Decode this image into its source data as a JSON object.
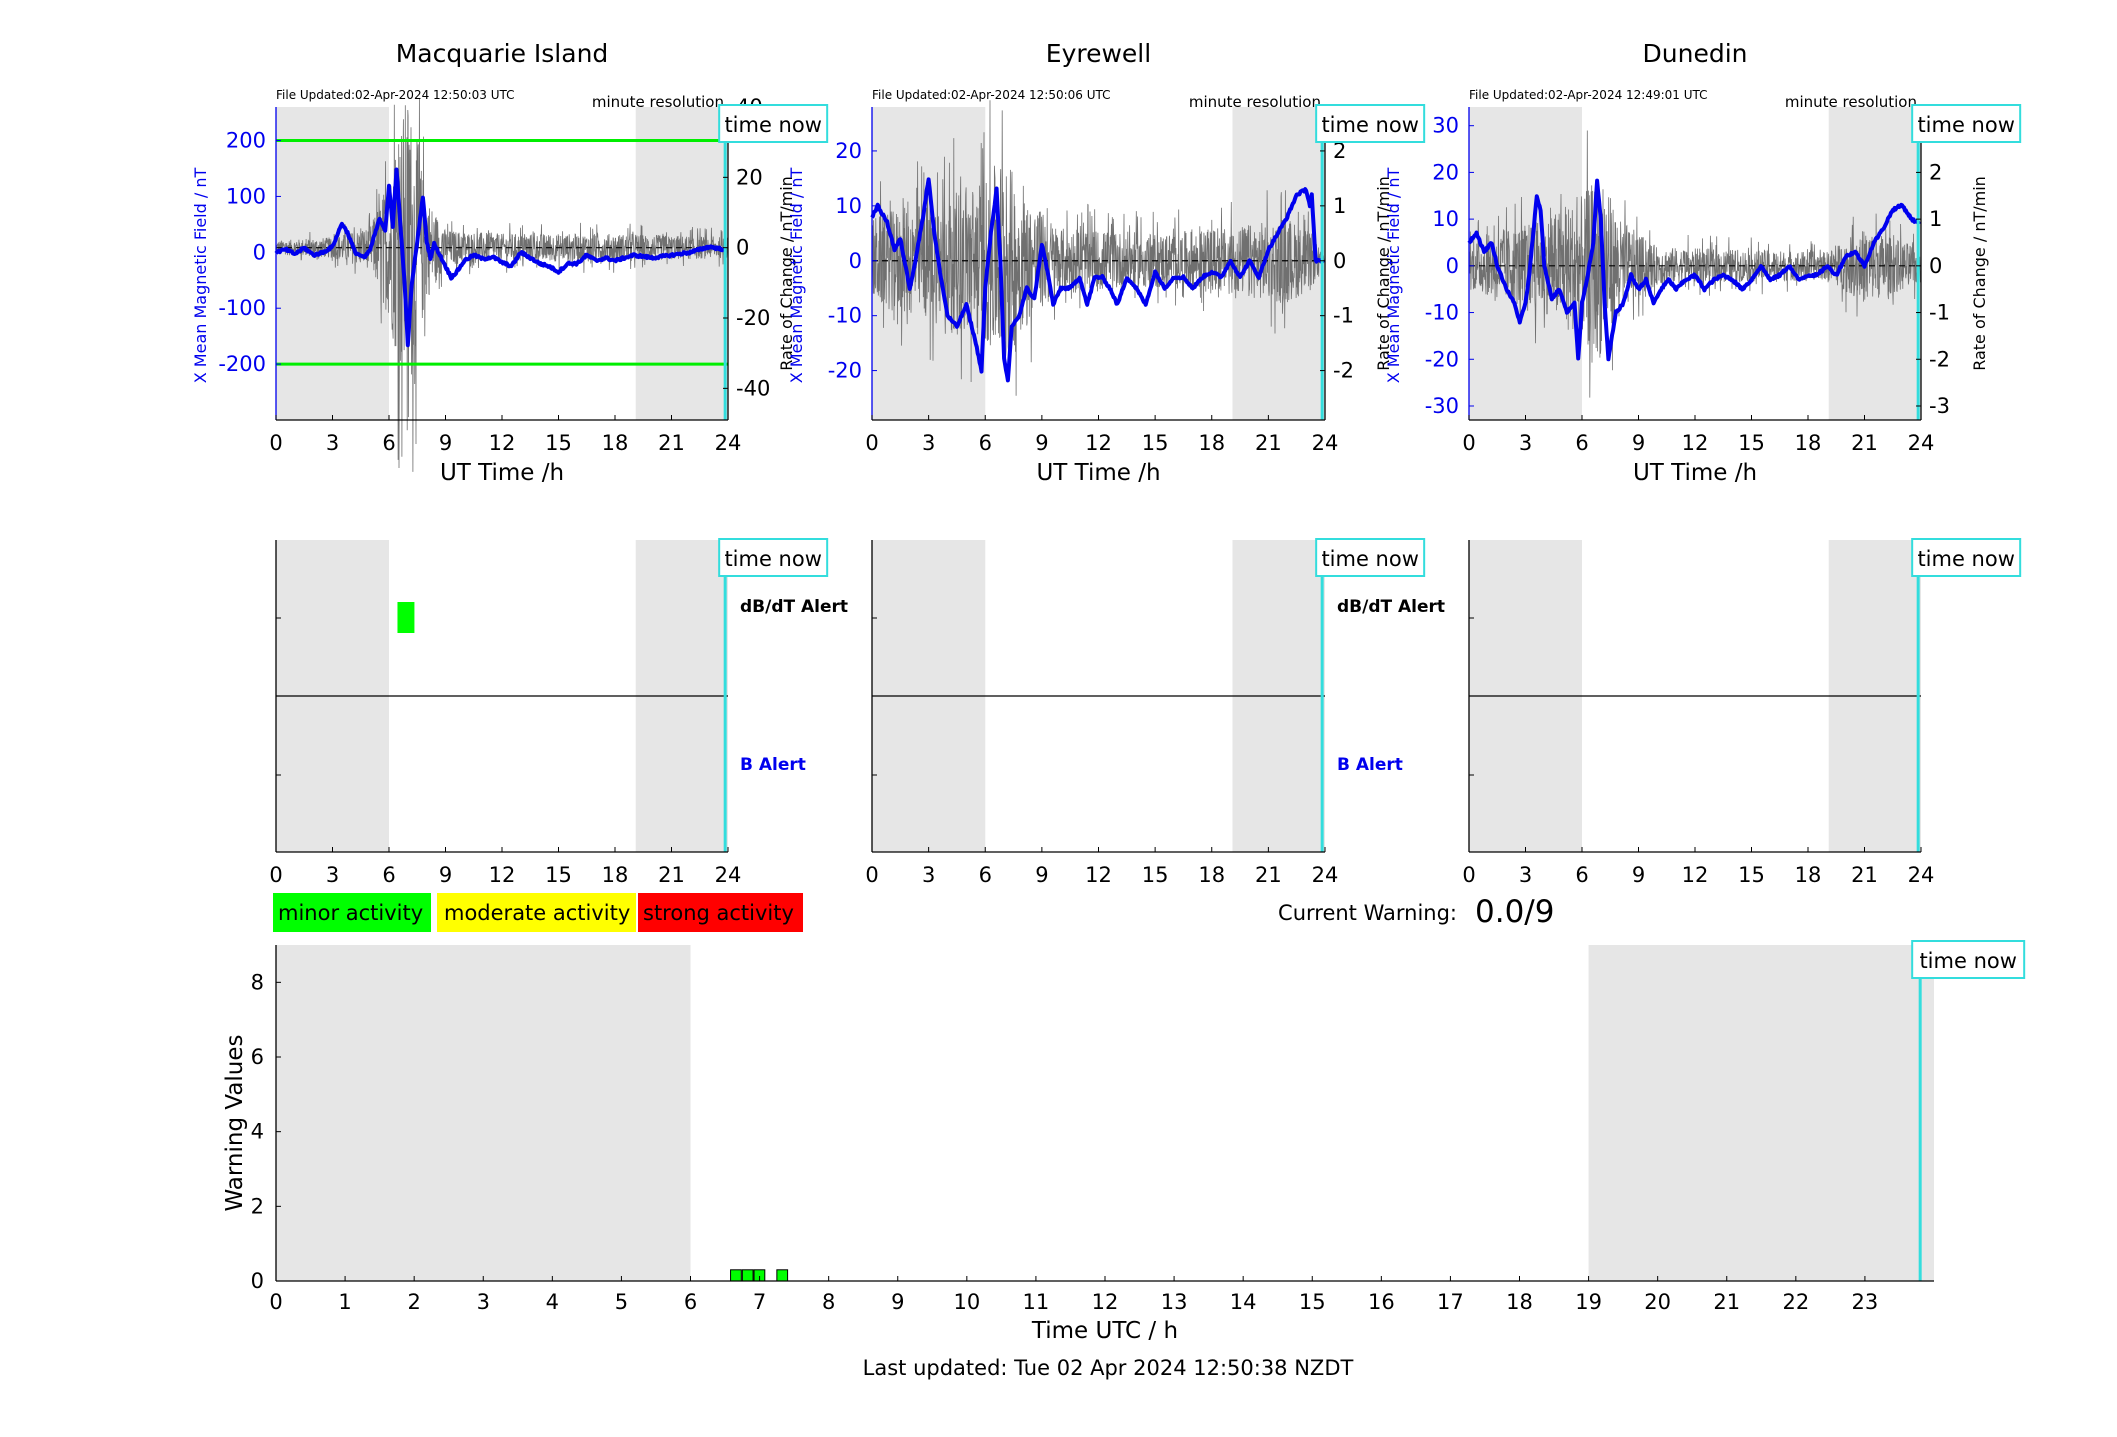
{
  "footer": {
    "last_updated": "Last updated: Tue 02 Apr 2024 12:50:38 NZDT"
  },
  "labels": {
    "time_now": "time now",
    "minute_resolution": "minute resolution",
    "x_axis_top": "UT Time /h",
    "y_left": "X Mean Magnetic Field / nT",
    "y_right": "Rate of Change / nT/min",
    "dbdt_alert": "dB/dT Alert",
    "b_alert": "B Alert",
    "current_warning_label": "Current Warning:",
    "current_warning_value": "0.0/9"
  },
  "legend": [
    {
      "label": "minor activity",
      "color": "#00ff00"
    },
    {
      "label": "moderate activity",
      "color": "#ffff00"
    },
    {
      "label": "strong activity",
      "color": "#ff0000"
    }
  ],
  "colors": {
    "field_line": "#0000ee",
    "rate_line": "#707070",
    "threshold": "#00ee00",
    "time_now": "#33dddd",
    "night_shade": "#e6e6e6"
  },
  "chart_data": [
    {
      "type": "line",
      "title": "Macquarie Island",
      "file_updated": "File Updated:02-Apr-2024 12:50:03 UTC",
      "xlabel": "UT Time /h",
      "ylabel_left": "X Mean Magnetic Field / nT",
      "ylabel_right": "Rate of Change / nT/min",
      "xlim": [
        0,
        24
      ],
      "xticks": [
        0,
        3,
        6,
        9,
        12,
        15,
        18,
        21,
        24
      ],
      "ylim_left": [
        -300,
        260
      ],
      "yticks_left": [
        200,
        100,
        0,
        -100,
        -200
      ],
      "ylim_right": [
        -49,
        40
      ],
      "yticks_right": [
        40,
        20,
        0,
        -20,
        -40
      ],
      "night_bands": [
        [
          0,
          6
        ],
        [
          19.1,
          24
        ]
      ],
      "thresholds": [
        200,
        -200
      ],
      "time_now": 23.85,
      "field_keypoints": [
        [
          0,
          0
        ],
        [
          0.5,
          5
        ],
        [
          1,
          -3
        ],
        [
          1.5,
          8
        ],
        [
          2,
          -5
        ],
        [
          2.5,
          0
        ],
        [
          3,
          10
        ],
        [
          3.5,
          52
        ],
        [
          3.8,
          35
        ],
        [
          4.2,
          0
        ],
        [
          4.7,
          -10
        ],
        [
          5,
          5
        ],
        [
          5.5,
          60
        ],
        [
          5.8,
          40
        ],
        [
          6,
          120
        ],
        [
          6.2,
          45
        ],
        [
          6.4,
          150
        ],
        [
          6.6,
          50
        ],
        [
          6.8,
          -40
        ],
        [
          7,
          -165
        ],
        [
          7.2,
          -60
        ],
        [
          7.5,
          20
        ],
        [
          7.8,
          100
        ],
        [
          8,
          20
        ],
        [
          8.2,
          -10
        ],
        [
          8.4,
          15
        ],
        [
          8.7,
          -5
        ],
        [
          9,
          -25
        ],
        [
          9.3,
          -45
        ],
        [
          9.6,
          -35
        ],
        [
          10,
          -15
        ],
        [
          10.5,
          -5
        ],
        [
          11,
          -12
        ],
        [
          11.5,
          -8
        ],
        [
          12,
          -18
        ],
        [
          12.5,
          -25
        ],
        [
          13,
          0
        ],
        [
          13.5,
          -10
        ],
        [
          14,
          -20
        ],
        [
          14.5,
          -25
        ],
        [
          15,
          -35
        ],
        [
          15.5,
          -20
        ],
        [
          16,
          -20
        ],
        [
          16.5,
          -5
        ],
        [
          17,
          -15
        ],
        [
          17.5,
          -10
        ],
        [
          18,
          -15
        ],
        [
          19,
          -5
        ],
        [
          20,
          -10
        ],
        [
          21,
          -5
        ],
        [
          22,
          0
        ],
        [
          23,
          10
        ],
        [
          23.8,
          5
        ]
      ],
      "rate_amplitude": [
        [
          0,
          2
        ],
        [
          3,
          3
        ],
        [
          5,
          6
        ],
        [
          6,
          20
        ],
        [
          6.5,
          35
        ],
        [
          7,
          45
        ],
        [
          7.5,
          30
        ],
        [
          8,
          15
        ],
        [
          9,
          5
        ],
        [
          12,
          4
        ],
        [
          18,
          4
        ],
        [
          24,
          3
        ]
      ]
    },
    {
      "type": "line",
      "title": "Eyrewell",
      "file_updated": "File Updated:02-Apr-2024 12:50:06 UTC",
      "xlabel": "UT Time /h",
      "ylabel_left": "X Mean Magnetic Field / nT",
      "ylabel_right": "Rate of Change / nT/min",
      "xlim": [
        0,
        24
      ],
      "xticks": [
        0,
        3,
        6,
        9,
        12,
        15,
        18,
        21,
        24
      ],
      "ylim_left": [
        -29,
        28
      ],
      "yticks_left": [
        20,
        10,
        0,
        -10,
        -20
      ],
      "ylim_right": [
        -2.9,
        2.8
      ],
      "yticks_right": [
        2,
        1,
        0,
        -1,
        -2
      ],
      "night_bands": [
        [
          0,
          6
        ],
        [
          19.1,
          24
        ]
      ],
      "thresholds": [],
      "time_now": 23.85,
      "field_keypoints": [
        [
          0,
          8
        ],
        [
          0.3,
          10
        ],
        [
          0.8,
          7
        ],
        [
          1.2,
          2
        ],
        [
          1.5,
          4
        ],
        [
          2,
          -5
        ],
        [
          2.3,
          0
        ],
        [
          2.7,
          8
        ],
        [
          3,
          15
        ],
        [
          3.3,
          5
        ],
        [
          3.6,
          -2
        ],
        [
          4,
          -10
        ],
        [
          4.5,
          -12
        ],
        [
          5,
          -8
        ],
        [
          5.5,
          -15
        ],
        [
          5.8,
          -20
        ],
        [
          6,
          -5
        ],
        [
          6.3,
          5
        ],
        [
          6.6,
          13
        ],
        [
          6.8,
          0
        ],
        [
          7,
          -18
        ],
        [
          7.2,
          -22
        ],
        [
          7.4,
          -12
        ],
        [
          7.8,
          -10
        ],
        [
          8.2,
          -5
        ],
        [
          8.6,
          -7
        ],
        [
          9,
          3
        ],
        [
          9.3,
          -2
        ],
        [
          9.6,
          -8
        ],
        [
          10,
          -5
        ],
        [
          10.5,
          -5
        ],
        [
          11,
          -3
        ],
        [
          11.4,
          -8
        ],
        [
          11.8,
          -3
        ],
        [
          12.2,
          -3
        ],
        [
          12.6,
          -5
        ],
        [
          13,
          -8
        ],
        [
          13.5,
          -3
        ],
        [
          14,
          -5
        ],
        [
          14.5,
          -8
        ],
        [
          15,
          -2
        ],
        [
          15.5,
          -5
        ],
        [
          16,
          -3
        ],
        [
          16.5,
          -3
        ],
        [
          17,
          -5
        ],
        [
          17.5,
          -3
        ],
        [
          18,
          -2
        ],
        [
          18.5,
          -3
        ],
        [
          19,
          0
        ],
        [
          19.5,
          -3
        ],
        [
          20,
          0
        ],
        [
          20.5,
          -3
        ],
        [
          21,
          2
        ],
        [
          21.5,
          5
        ],
        [
          22,
          8
        ],
        [
          22.5,
          12
        ],
        [
          23,
          13
        ],
        [
          23.2,
          10
        ],
        [
          23.3,
          12
        ],
        [
          23.5,
          0
        ],
        [
          23.9,
          0
        ]
      ],
      "rate_amplitude": [
        [
          0,
          0.8
        ],
        [
          2,
          1
        ],
        [
          4,
          1.2
        ],
        [
          6,
          1.5
        ],
        [
          7,
          2
        ],
        [
          8,
          1.2
        ],
        [
          10,
          0.6
        ],
        [
          15,
          0.5
        ],
        [
          19,
          0.6
        ],
        [
          22,
          0.8
        ],
        [
          23.3,
          0.5
        ],
        [
          24,
          0
        ]
      ]
    },
    {
      "type": "line",
      "title": "Dunedin",
      "file_updated": "File Updated:02-Apr-2024 12:49:01 UTC",
      "xlabel": "UT Time /h",
      "ylabel_left": "X Mean Magnetic Field / nT",
      "ylabel_right": "Rate of Change / nT/min",
      "xlim": [
        0,
        24
      ],
      "xticks": [
        0,
        3,
        6,
        9,
        12,
        15,
        18,
        21,
        24
      ],
      "ylim_left": [
        -33,
        34
      ],
      "yticks_left": [
        30,
        20,
        10,
        0,
        -10,
        -20,
        -30
      ],
      "ylim_right": [
        -3.3,
        3.4
      ],
      "yticks_right": [
        3,
        2,
        1,
        0,
        -1,
        -2,
        -3
      ],
      "night_bands": [
        [
          0,
          6
        ],
        [
          19.1,
          24
        ]
      ],
      "thresholds": [],
      "time_now": 23.85,
      "field_keypoints": [
        [
          0,
          5
        ],
        [
          0.4,
          7
        ],
        [
          0.8,
          3
        ],
        [
          1.2,
          5
        ],
        [
          1.5,
          0
        ],
        [
          2,
          -5
        ],
        [
          2.4,
          -8
        ],
        [
          2.7,
          -12
        ],
        [
          3,
          -8
        ],
        [
          3.2,
          -2
        ],
        [
          3.6,
          15
        ],
        [
          3.8,
          12
        ],
        [
          4,
          0
        ],
        [
          4.4,
          -7
        ],
        [
          4.8,
          -5
        ],
        [
          5.2,
          -10
        ],
        [
          5.6,
          -8
        ],
        [
          5.8,
          -20
        ],
        [
          6,
          -8
        ],
        [
          6.3,
          -2
        ],
        [
          6.6,
          5
        ],
        [
          6.8,
          18
        ],
        [
          7,
          10
        ],
        [
          7.2,
          -8
        ],
        [
          7.4,
          -20
        ],
        [
          7.6,
          -15
        ],
        [
          7.8,
          -10
        ],
        [
          8.2,
          -8
        ],
        [
          8.6,
          -2
        ],
        [
          9,
          -5
        ],
        [
          9.4,
          -3
        ],
        [
          9.8,
          -8
        ],
        [
          10.2,
          -5
        ],
        [
          10.6,
          -3
        ],
        [
          11,
          -5
        ],
        [
          11.5,
          -3
        ],
        [
          12,
          -2
        ],
        [
          12.5,
          -5
        ],
        [
          13,
          -3
        ],
        [
          13.5,
          -2
        ],
        [
          14,
          -3
        ],
        [
          14.5,
          -5
        ],
        [
          15,
          -3
        ],
        [
          15.5,
          0
        ],
        [
          16,
          -3
        ],
        [
          16.5,
          -2
        ],
        [
          17,
          0
        ],
        [
          17.5,
          -3
        ],
        [
          18,
          -2
        ],
        [
          18.5,
          -2
        ],
        [
          19,
          0
        ],
        [
          19.5,
          -2
        ],
        [
          20,
          2
        ],
        [
          20.5,
          3
        ],
        [
          21,
          0
        ],
        [
          21.5,
          5
        ],
        [
          22,
          8
        ],
        [
          22.5,
          12
        ],
        [
          23,
          13
        ],
        [
          23.5,
          10
        ],
        [
          23.9,
          9
        ]
      ],
      "rate_amplitude": [
        [
          0,
          0.5
        ],
        [
          2,
          0.8
        ],
        [
          4,
          1
        ],
        [
          6,
          1.5
        ],
        [
          7,
          2
        ],
        [
          8,
          1
        ],
        [
          10,
          0.4
        ],
        [
          19,
          0.3
        ],
        [
          21,
          0.8
        ],
        [
          24,
          0.4
        ]
      ]
    }
  ],
  "alert_panels": [
    {
      "title": "Macquarie Island",
      "xlim": [
        0,
        24
      ],
      "xticks": [
        0,
        3,
        6,
        9,
        12,
        15,
        18,
        21,
        24
      ],
      "night_bands": [
        [
          0,
          6
        ],
        [
          19.1,
          24
        ]
      ],
      "time_now": 23.85,
      "show_labels": true,
      "dbdt_alerts": [
        [
          6.45,
          7.35
        ]
      ]
    },
    {
      "title": "Eyrewell",
      "xlim": [
        0,
        24
      ],
      "xticks": [
        0,
        3,
        6,
        9,
        12,
        15,
        18,
        21,
        24
      ],
      "night_bands": [
        [
          0,
          6
        ],
        [
          19.1,
          24
        ]
      ],
      "time_now": 23.85,
      "show_labels": true,
      "dbdt_alerts": []
    },
    {
      "title": "Dunedin",
      "xlim": [
        0,
        24
      ],
      "xticks": [
        0,
        3,
        6,
        9,
        12,
        15,
        18,
        21,
        24
      ],
      "night_bands": [
        [
          0,
          6
        ],
        [
          19.1,
          24
        ]
      ],
      "time_now": 23.85,
      "show_labels": false,
      "dbdt_alerts": []
    }
  ],
  "warning_chart": {
    "type": "bar",
    "xlabel": "Time UTC / h",
    "ylabel": "Warning Values",
    "xlim": [
      0,
      24
    ],
    "xticks": [
      0,
      1,
      2,
      3,
      4,
      5,
      6,
      7,
      8,
      9,
      10,
      11,
      12,
      13,
      14,
      15,
      16,
      17,
      18,
      19,
      20,
      21,
      22,
      23
    ],
    "ylim": [
      0,
      9
    ],
    "yticks": [
      0,
      2,
      4,
      6,
      8
    ],
    "night_bands": [
      [
        0,
        6
      ],
      [
        19,
        24
      ]
    ],
    "time_now": 23.8,
    "bars": [
      {
        "x": 6.58,
        "width": 0.17,
        "value": 0.3
      },
      {
        "x": 6.75,
        "width": 0.17,
        "value": 0.3
      },
      {
        "x": 6.92,
        "width": 0.17,
        "value": 0.3
      },
      {
        "x": 7.25,
        "width": 0.17,
        "value": 0.3
      }
    ]
  }
}
